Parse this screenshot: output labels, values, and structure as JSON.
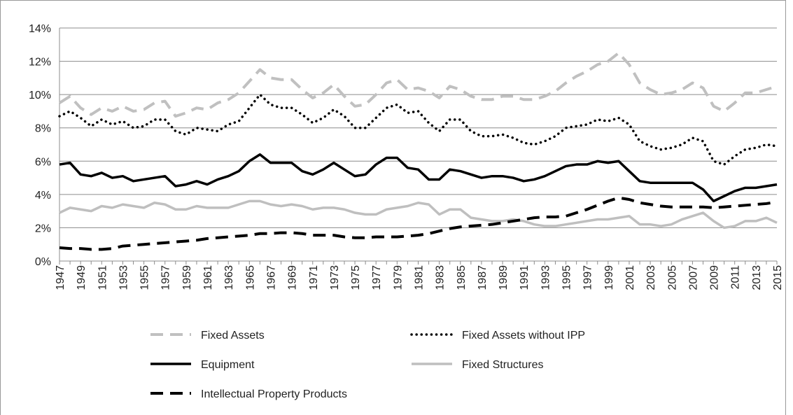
{
  "chart_data": {
    "type": "line",
    "x": [
      1947,
      1948,
      1949,
      1950,
      1951,
      1952,
      1953,
      1954,
      1955,
      1956,
      1957,
      1958,
      1959,
      1960,
      1961,
      1962,
      1963,
      1964,
      1965,
      1966,
      1967,
      1968,
      1969,
      1970,
      1971,
      1972,
      1973,
      1974,
      1975,
      1976,
      1977,
      1978,
      1979,
      1980,
      1981,
      1982,
      1983,
      1984,
      1985,
      1986,
      1987,
      1988,
      1989,
      1990,
      1991,
      1992,
      1993,
      1994,
      1995,
      1996,
      1997,
      1998,
      1999,
      2000,
      2001,
      2002,
      2003,
      2004,
      2005,
      2006,
      2007,
      2008,
      2009,
      2010,
      2011,
      2012,
      2013,
      2014,
      2015
    ],
    "xlim": [
      1947,
      2015
    ],
    "xticks": [
      1947,
      1949,
      1951,
      1953,
      1955,
      1957,
      1959,
      1961,
      1963,
      1965,
      1967,
      1969,
      1971,
      1973,
      1975,
      1977,
      1979,
      1981,
      1983,
      1985,
      1987,
      1989,
      1991,
      1993,
      1995,
      1997,
      1999,
      2001,
      2003,
      2005,
      2007,
      2009,
      2011,
      2013,
      2015
    ],
    "ylim": [
      0,
      14
    ],
    "yticks": [
      {
        "value": 0,
        "label": "0%"
      },
      {
        "value": 2,
        "label": "2%"
      },
      {
        "value": 4,
        "label": "4%"
      },
      {
        "value": 6,
        "label": "6%"
      },
      {
        "value": 8,
        "label": "8%"
      },
      {
        "value": 10,
        "label": "10%"
      },
      {
        "value": 12,
        "label": "12%"
      },
      {
        "value": 14,
        "label": "14%"
      }
    ],
    "grid": true,
    "legend": "bottom",
    "series": [
      {
        "name": "Fixed Assets",
        "color": "#c0c0c0",
        "style": "dashed",
        "values": [
          9.5,
          9.9,
          9.2,
          8.8,
          9.2,
          9.0,
          9.3,
          9.0,
          9.1,
          9.5,
          9.6,
          8.7,
          8.9,
          9.2,
          9.1,
          9.5,
          9.7,
          10.1,
          10.8,
          11.5,
          11.0,
          10.9,
          10.9,
          10.3,
          9.8,
          10.1,
          10.6,
          9.9,
          9.3,
          9.4,
          10.0,
          10.7,
          10.9,
          10.3,
          10.4,
          10.2,
          9.8,
          10.5,
          10.3,
          9.9,
          9.7,
          9.7,
          9.9,
          9.9,
          9.7,
          9.7,
          9.9,
          10.2,
          10.7,
          11.1,
          11.4,
          11.8,
          12.0,
          12.5,
          11.8,
          10.7,
          10.3,
          10.0,
          10.1,
          10.3,
          10.7,
          10.4,
          9.3,
          9.0,
          9.5,
          10.1,
          10.1,
          10.3,
          10.5
        ]
      },
      {
        "name": "Fixed Assets without IPP",
        "color": "#000000",
        "style": "dotted",
        "values": [
          8.7,
          9.0,
          8.6,
          8.1,
          8.5,
          8.2,
          8.4,
          8.0,
          8.1,
          8.5,
          8.5,
          7.8,
          7.6,
          8.0,
          7.9,
          7.8,
          8.2,
          8.4,
          9.2,
          10.0,
          9.4,
          9.2,
          9.2,
          8.8,
          8.3,
          8.6,
          9.1,
          8.7,
          8.0,
          8.0,
          8.6,
          9.2,
          9.4,
          8.9,
          9.0,
          8.3,
          7.8,
          8.5,
          8.5,
          7.8,
          7.5,
          7.5,
          7.6,
          7.4,
          7.1,
          7.0,
          7.2,
          7.5,
          8.0,
          8.1,
          8.2,
          8.5,
          8.4,
          8.6,
          8.2,
          7.2,
          6.9,
          6.7,
          6.8,
          7.0,
          7.4,
          7.2,
          6.0,
          5.8,
          6.3,
          6.7,
          6.8,
          7.0,
          6.9
        ]
      },
      {
        "name": "Equipment",
        "color": "#000000",
        "style": "solid",
        "values": [
          5.8,
          5.9,
          5.2,
          5.1,
          5.3,
          5.0,
          5.1,
          4.8,
          4.9,
          5.0,
          5.1,
          4.5,
          4.6,
          4.8,
          4.6,
          4.9,
          5.1,
          5.4,
          6.0,
          6.4,
          5.9,
          5.9,
          5.9,
          5.4,
          5.2,
          5.5,
          5.9,
          5.5,
          5.1,
          5.2,
          5.8,
          6.2,
          6.2,
          5.6,
          5.5,
          4.9,
          4.9,
          5.5,
          5.4,
          5.2,
          5.0,
          5.1,
          5.1,
          5.0,
          4.8,
          4.9,
          5.1,
          5.4,
          5.7,
          5.8,
          5.8,
          6.0,
          5.9,
          6.0,
          5.4,
          4.8,
          4.7,
          4.7,
          4.7,
          4.7,
          4.7,
          4.3,
          3.6,
          3.9,
          4.2,
          4.4,
          4.4,
          4.5,
          4.6
        ]
      },
      {
        "name": "Fixed Structures",
        "color": "#bfbfbf",
        "style": "solid",
        "values": [
          2.9,
          3.2,
          3.1,
          3.0,
          3.3,
          3.2,
          3.4,
          3.3,
          3.2,
          3.5,
          3.4,
          3.1,
          3.1,
          3.3,
          3.2,
          3.2,
          3.2,
          3.4,
          3.6,
          3.6,
          3.4,
          3.3,
          3.4,
          3.3,
          3.1,
          3.2,
          3.2,
          3.1,
          2.9,
          2.8,
          2.8,
          3.1,
          3.2,
          3.3,
          3.5,
          3.4,
          2.8,
          3.1,
          3.1,
          2.6,
          2.5,
          2.4,
          2.4,
          2.5,
          2.4,
          2.2,
          2.1,
          2.1,
          2.2,
          2.3,
          2.4,
          2.5,
          2.5,
          2.6,
          2.7,
          2.2,
          2.2,
          2.1,
          2.2,
          2.5,
          2.7,
          2.9,
          2.4,
          2.0,
          2.1,
          2.4,
          2.4,
          2.6,
          2.3
        ]
      },
      {
        "name": "Intellectual Property Products",
        "color": "#000000",
        "style": "dashed",
        "values": [
          0.8,
          0.75,
          0.75,
          0.7,
          0.7,
          0.75,
          0.9,
          0.95,
          1.0,
          1.05,
          1.1,
          1.15,
          1.2,
          1.25,
          1.35,
          1.4,
          1.45,
          1.5,
          1.55,
          1.65,
          1.65,
          1.7,
          1.7,
          1.65,
          1.55,
          1.55,
          1.55,
          1.45,
          1.4,
          1.4,
          1.45,
          1.45,
          1.45,
          1.5,
          1.55,
          1.65,
          1.8,
          1.95,
          2.05,
          2.1,
          2.15,
          2.2,
          2.3,
          2.4,
          2.5,
          2.6,
          2.65,
          2.65,
          2.7,
          2.9,
          3.1,
          3.35,
          3.6,
          3.8,
          3.7,
          3.5,
          3.4,
          3.3,
          3.25,
          3.25,
          3.25,
          3.25,
          3.2,
          3.25,
          3.3,
          3.35,
          3.4,
          3.45,
          3.55
        ]
      }
    ]
  }
}
